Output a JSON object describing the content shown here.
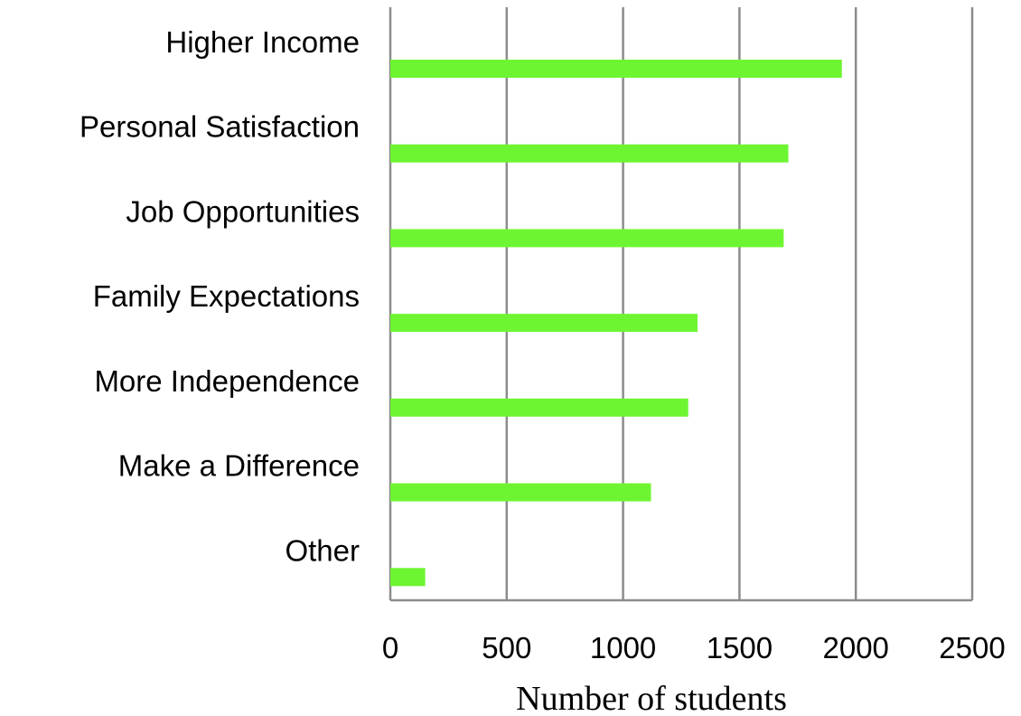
{
  "chart_data": {
    "type": "bar",
    "orientation": "horizontal",
    "categories": [
      "Higher Income",
      "Personal Satisfaction",
      "Job Opportunities",
      "Family Expectations",
      "More Independence",
      "Make a Difference",
      "Other"
    ],
    "values": [
      1940,
      1710,
      1690,
      1320,
      1280,
      1120,
      150
    ],
    "xlabel": "Number of students",
    "ylabel": "",
    "xlim": [
      0,
      2500
    ],
    "xticks": [
      0,
      500,
      1000,
      1500,
      2000,
      2500
    ],
    "xtick_labels": [
      "0",
      "500",
      "1000",
      "1500",
      "2000",
      "2500"
    ],
    "grid": "vertical",
    "legend": "none",
    "bar_color": "#6ef532",
    "grid_color": "#8c8c8c"
  }
}
